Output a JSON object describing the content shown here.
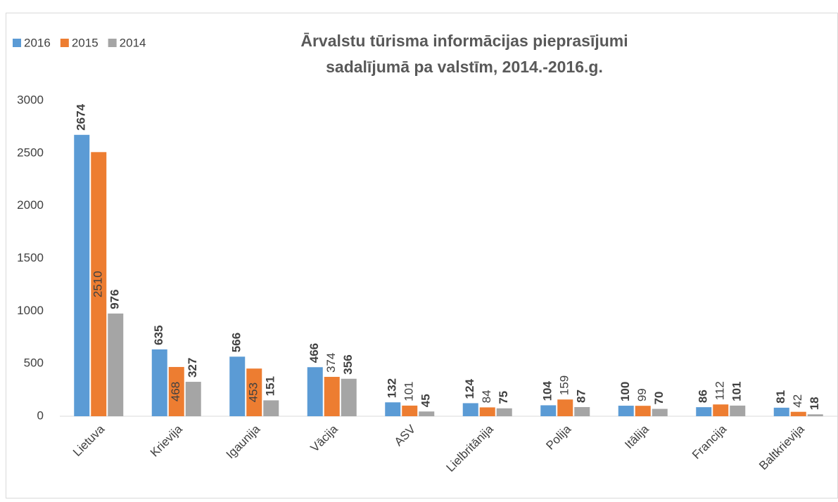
{
  "chart_data": {
    "type": "bar",
    "title": [
      "Ārvalstu tūrisma informācijas pieprasījumi",
      "sadalījumā pa valstīm, 2014.-2016.g."
    ],
    "categories": [
      "Lietuva",
      "Krievija",
      "Igaunija",
      "Vācija",
      "ASV",
      "Lielbritānija",
      "Polija",
      "Itālija",
      "Francija",
      "Baltkrievija"
    ],
    "series": [
      {
        "name": "2016",
        "color": "#5b9bd5",
        "values": [
          2674,
          635,
          566,
          466,
          132,
          124,
          104,
          100,
          86,
          81
        ]
      },
      {
        "name": "2015",
        "color": "#ed7d31",
        "values": [
          2510,
          468,
          453,
          374,
          101,
          84,
          159,
          99,
          112,
          42
        ]
      },
      {
        "name": "2014",
        "color": "#a5a5a5",
        "values": [
          976,
          327,
          151,
          356,
          45,
          75,
          87,
          70,
          101,
          18
        ]
      }
    ],
    "ylim": [
      0,
      3000
    ],
    "yticks": [
      0,
      500,
      1000,
      1500,
      2000,
      2500,
      3000
    ],
    "grid": false,
    "legend": "top-left"
  }
}
